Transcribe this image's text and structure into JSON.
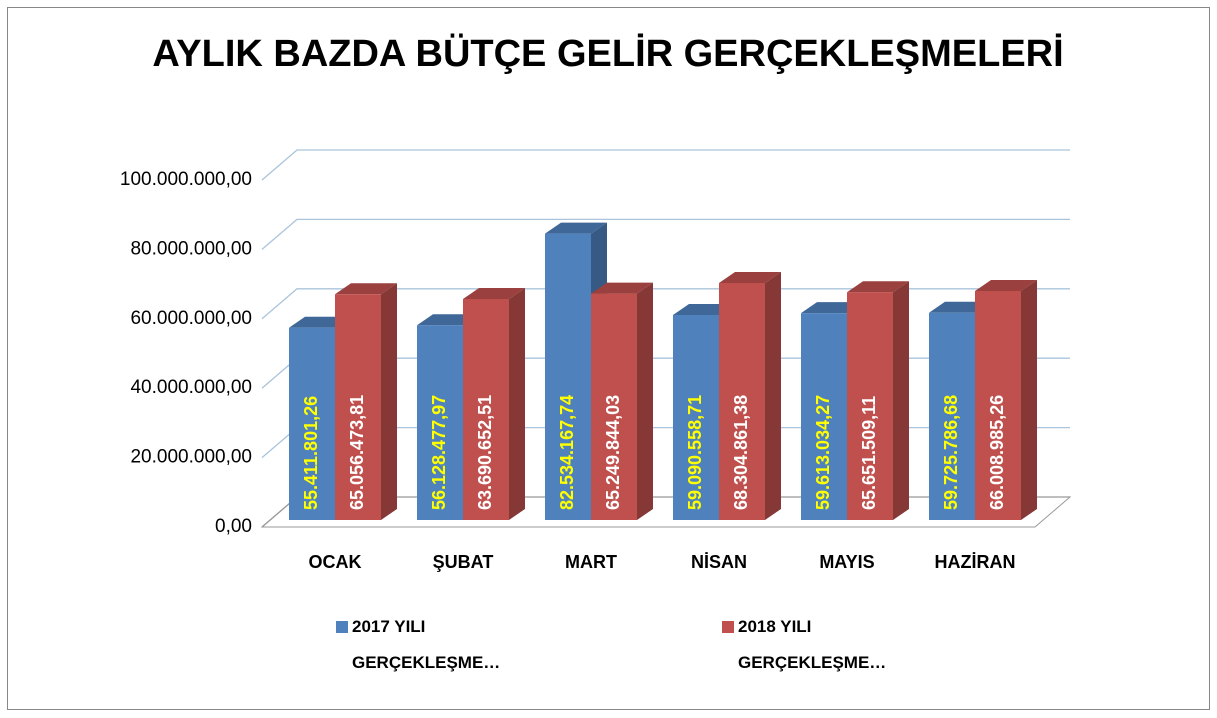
{
  "chart_data": {
    "type": "bar3d",
    "title": "AYLIK BAZDA BÜTÇE GELİR GERÇEKLEŞMELERİ",
    "categories": [
      "OCAK",
      "ŞUBAT",
      "MART",
      "NİSAN",
      "MAYIS",
      "HAZİRAN"
    ],
    "series": [
      {
        "name": "2017 YILI GERÇEKLEŞME…",
        "color": "#4f81bd",
        "values": [
          55411801.26,
          56128477.97,
          82534167.74,
          59090558.71,
          59613034.27,
          59725786.68
        ],
        "value_labels": [
          "55.411.801,26",
          "56.128.477,97",
          "82.534.167,74",
          "59.090.558,71",
          "59.613.034,27",
          "59.725.786,68"
        ]
      },
      {
        "name": "2018 YILI GERÇEKLEŞME…",
        "color": "#c0504d",
        "values": [
          65056473.81,
          63690652.51,
          65249844.03,
          68304861.38,
          65651509.11,
          66008985.26
        ],
        "value_labels": [
          "65.056.473,81",
          "63.690.652,51",
          "65.249.844,03",
          "68.304.861,38",
          "65.651.509,11",
          "66.008.985,26"
        ]
      }
    ],
    "ylim": [
      0,
      100000000
    ],
    "yticks": [
      {
        "value": 0,
        "label": "0,00"
      },
      {
        "value": 20000000,
        "label": "20.000.000,00"
      },
      {
        "value": 40000000,
        "label": "40.000.000,00"
      },
      {
        "value": 60000000,
        "label": "60.000.000,00"
      },
      {
        "value": 80000000,
        "label": "80.000.000,00"
      },
      {
        "value": 100000000,
        "label": "100.000.000,00"
      }
    ],
    "grid": true
  }
}
